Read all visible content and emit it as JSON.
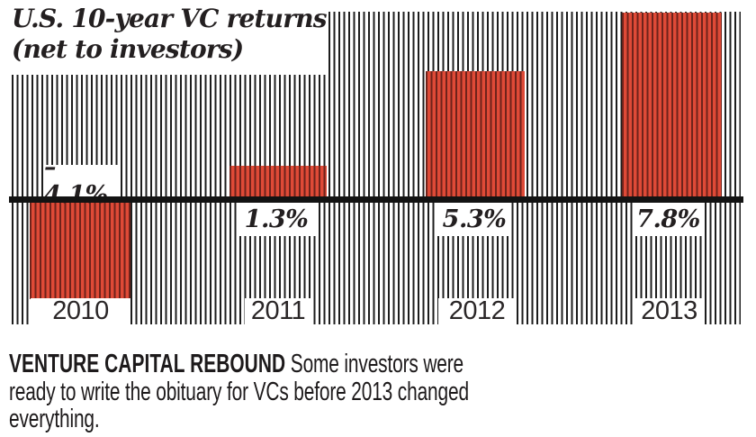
{
  "title": {
    "line1": "U.S. 10-year VC returns",
    "line2": "(net to investors)"
  },
  "chart_data": {
    "type": "bar",
    "title": "U.S. 10-year VC returns (net to investors)",
    "categories": [
      "2010",
      "2011",
      "2012",
      "2013"
    ],
    "values": [
      -4.1,
      1.3,
      5.3,
      7.8
    ],
    "value_labels": [
      "–4.1%",
      "1.3%",
      "5.3%",
      "7.8%"
    ],
    "xlabel": "",
    "ylabel": "",
    "ylim": [
      -4.5,
      8.2
    ],
    "baseline": 0,
    "grid": "off",
    "legend": "none",
    "bar_color": "#df4a37",
    "bar_stripe_color": "#6e231b",
    "background_stripe_color": "#1d1d1d",
    "baseline_color": "#131313"
  },
  "caption": {
    "lead": "VENTURE CAPITAL REBOUND",
    "line1_rest": " Some investors were",
    "line2": "ready to write the obituary for VCs before 2013 changed",
    "line3": "everything."
  }
}
